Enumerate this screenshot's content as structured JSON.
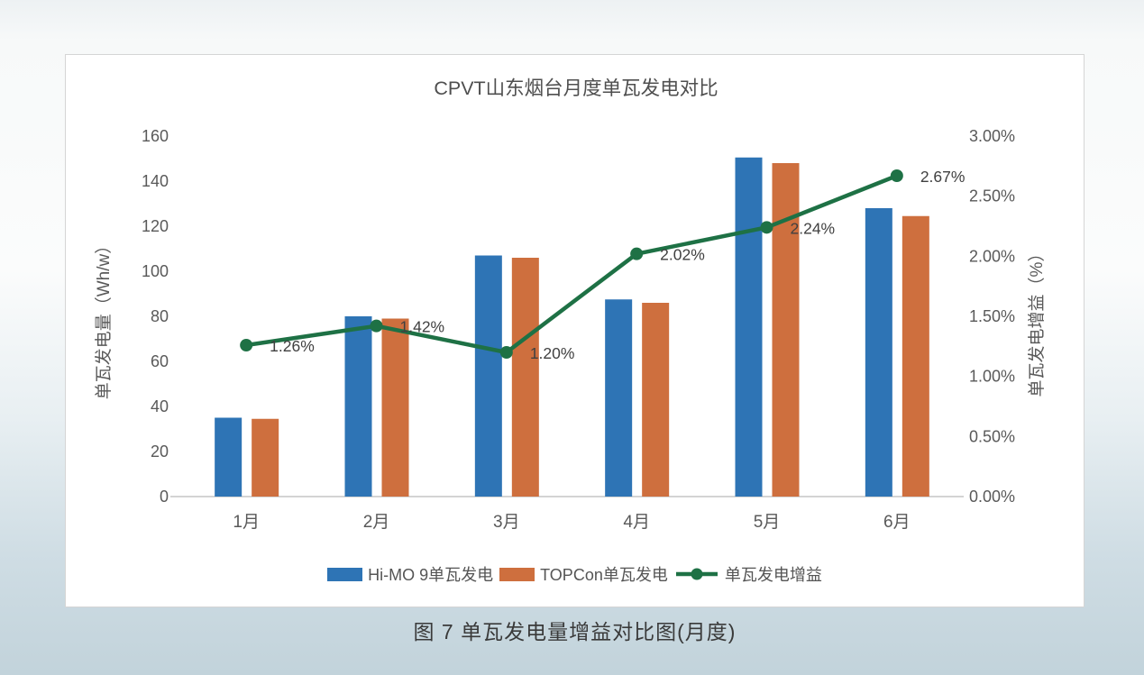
{
  "title": "CPVT山东烟台月度单瓦发电对比",
  "caption": "图 7 单瓦发电量增益对比图(月度)",
  "colors": {
    "himo_blue": "#2E74B5",
    "topcon_orange": "#CE6F3E",
    "gain_green": "#1E7145",
    "axis_text": "#595959",
    "data_label": "#404040",
    "axis_line": "#c6c6c6",
    "panel_bg": "#ffffff",
    "panel_border": "#d5d5d5"
  },
  "chart_data": {
    "type": "bar",
    "subtype": "combo-bar-line-dual-axis",
    "title": "CPVT山东烟台月度单瓦发电对比",
    "categories": [
      "1月",
      "2月",
      "3月",
      "4月",
      "5月",
      "6月"
    ],
    "series": [
      {
        "name": "Hi-MO 9单瓦发电",
        "type": "bar",
        "axis": "left",
        "color": "#2E74B5",
        "values": [
          35,
          80,
          107,
          87.5,
          150.5,
          128
        ]
      },
      {
        "name": "TOPCon单瓦发电",
        "type": "bar",
        "axis": "left",
        "color": "#CE6F3E",
        "values": [
          34.5,
          79,
          106,
          86,
          148,
          124.5
        ]
      },
      {
        "name": "单瓦发电增益",
        "type": "line",
        "axis": "right",
        "color": "#1E7145",
        "values": [
          1.26,
          1.42,
          1.2,
          2.02,
          2.24,
          2.67
        ],
        "data_labels": [
          "1.26%",
          "1.42%",
          "1.20%",
          "2.02%",
          "2.24%",
          "2.67%"
        ]
      }
    ],
    "left_axis": {
      "title": "单瓦发电量（Wh/w）",
      "min": 0,
      "max": 160,
      "step": 20,
      "ticks": [
        "0",
        "20",
        "40",
        "60",
        "80",
        "100",
        "120",
        "140",
        "160"
      ]
    },
    "right_axis": {
      "title": "单瓦发电增益（%）",
      "min": 0,
      "max": 3,
      "step": 0.5,
      "ticks": [
        "0.00%",
        "0.50%",
        "1.00%",
        "1.50%",
        "2.00%",
        "2.50%",
        "3.00%"
      ]
    },
    "legend_position": "bottom",
    "grid": false
  }
}
